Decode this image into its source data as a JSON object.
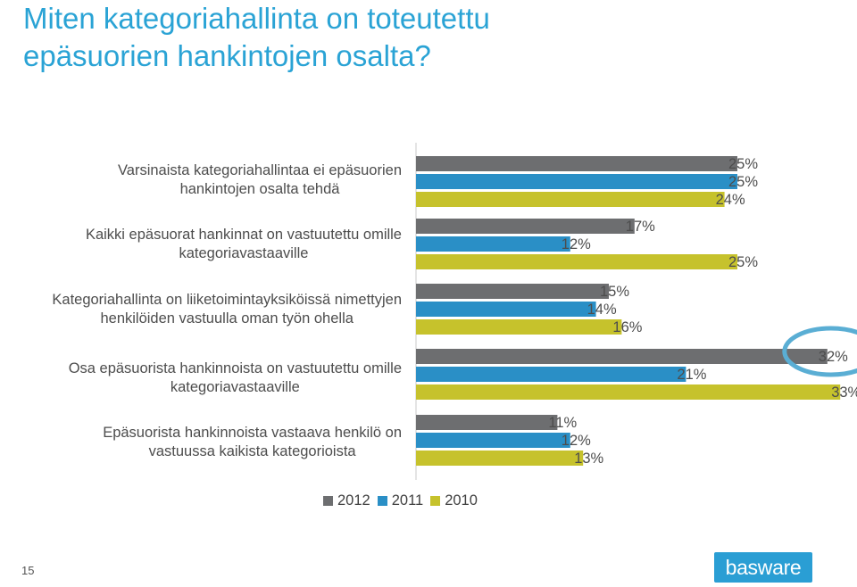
{
  "title": "Miten kategoriahallinta on toteutettu epäsuorien hankintojen osalta?",
  "page_number": "15",
  "logo_text": "basware",
  "colors": {
    "title": "#2aa3d5",
    "series_2012": "#6d6e70",
    "series_2011": "#2a8fc6",
    "series_2010": "#c6c22c",
    "highlight_ring": "#5aaed4",
    "logo_bg": "#2a9ed4"
  },
  "chart_data": {
    "type": "bar",
    "orientation": "horizontal",
    "categories": [
      "Varsinaista kategoriahallintaa ei epäsuorien hankintojen osalta tehdä",
      "Kaikki epäsuorat hankinnat on vastuutettu omille kategoriavastaaville",
      "Kategoriahallinta on liiketoimintayksiköissä nimettyjen henkilöiden vastuulla oman työn ohella",
      "Osa epäsuorista hankinnoista on vastuutettu omille kategoriavastaaville",
      "Epäsuorista hankinnoista vastaava henkilö on vastuussa kaikista kategorioista"
    ],
    "category_lines": [
      [
        "Varsinaista kategoriahallintaa ei epäsuorien",
        "hankintojen osalta tehdä"
      ],
      [
        "Kaikki epäsuorat hankinnat on vastuutettu omille",
        "kategoriavastaaville"
      ],
      [
        "Kategoriahallinta on liiketoimintayksiköissä nimettyjen",
        "henkilöiden vastuulla oman työn ohella"
      ],
      [
        "Osa epäsuorista hankinnoista on vastuutettu omille",
        "kategoriavastaaville"
      ],
      [
        "Epäsuorista hankinnoista vastaava henkilö on",
        "vastuussa kaikista kategorioista"
      ]
    ],
    "series": [
      {
        "name": "2012",
        "color": "#6d6e70",
        "values": [
          25,
          17,
          15,
          32,
          11
        ]
      },
      {
        "name": "2011",
        "color": "#2a8fc6",
        "values": [
          25,
          12,
          14,
          21,
          12
        ]
      },
      {
        "name": "2010",
        "color": "#c6c22c",
        "values": [
          24,
          25,
          16,
          33,
          13
        ]
      }
    ],
    "value_suffix": "%",
    "xlim": [
      0,
      36
    ],
    "legend_position": "bottom",
    "highlight": {
      "category_index": 3,
      "series_index": 0
    }
  }
}
